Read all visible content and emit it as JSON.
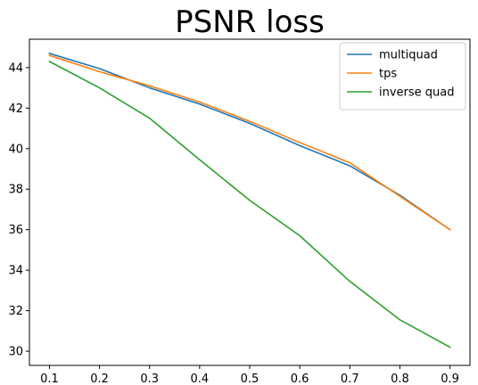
{
  "chart_data": {
    "type": "line",
    "title": "PSNR loss",
    "xlabel": "",
    "ylabel": "",
    "x": [
      0.1,
      0.2,
      0.3,
      0.4,
      0.5,
      0.6,
      0.7,
      0.8,
      0.9
    ],
    "xticks": [
      "0.1",
      "0.2",
      "0.3",
      "0.4",
      "0.5",
      "0.6",
      "0.7",
      "0.8",
      "0.9"
    ],
    "yticks": [
      30,
      32,
      34,
      36,
      38,
      40,
      42,
      44
    ],
    "xlim": [
      0.06,
      0.94
    ],
    "ylim": [
      29.3,
      45.4
    ],
    "grid": false,
    "legend_position": "top-right",
    "series": [
      {
        "name": "multiquad",
        "color": "#1f77b4",
        "values": [
          44.7,
          43.95,
          43.0,
          42.2,
          41.25,
          40.15,
          39.15,
          37.7,
          36.0
        ]
      },
      {
        "name": "tps",
        "color": "#ff7f0e",
        "values": [
          44.6,
          43.8,
          43.1,
          42.3,
          41.35,
          40.3,
          39.3,
          37.65,
          36.0
        ]
      },
      {
        "name": "inverse quad",
        "color": "#2ca02c",
        "values": [
          44.3,
          43.0,
          41.5,
          39.45,
          37.45,
          35.7,
          33.45,
          31.55,
          30.2
        ]
      }
    ]
  }
}
